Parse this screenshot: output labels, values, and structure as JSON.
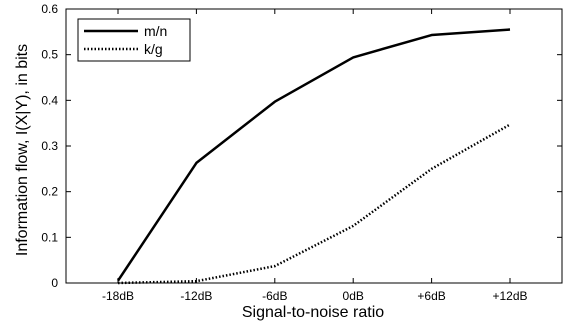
{
  "chart_data": {
    "type": "line",
    "title": "",
    "xlabel": "Signal-to-noise ratio",
    "ylabel": "Information flow, I(X|Y), in bits",
    "categories": [
      "-18dB",
      "-12dB",
      "-6dB",
      "0dB",
      "+6dB",
      "+12dB"
    ],
    "ylim": [
      0,
      0.6
    ],
    "yticks": [
      "0",
      "0.1",
      "0.2",
      "0.3",
      "0.4",
      "0.5",
      "0.6"
    ],
    "grid": false,
    "legend_position": "top-left",
    "series": [
      {
        "name": "m/n",
        "values": [
          0.005,
          0.263,
          0.397,
          0.494,
          0.543,
          0.555
        ],
        "style": "solid",
        "color": "#000000"
      },
      {
        "name": "k/g",
        "values": [
          0.0,
          0.004,
          0.037,
          0.125,
          0.25,
          0.347
        ],
        "style": "dotted",
        "color": "#000000"
      }
    ]
  }
}
